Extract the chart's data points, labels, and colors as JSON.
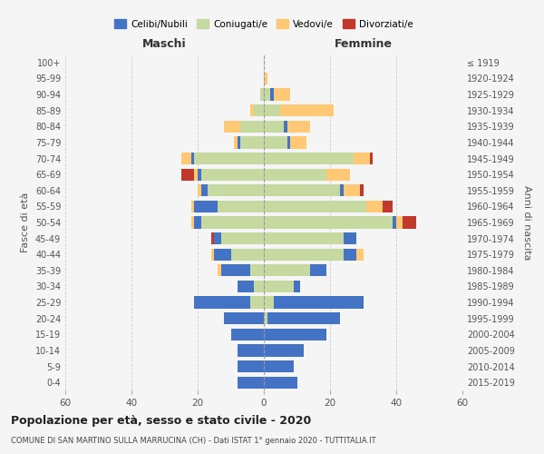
{
  "age_groups": [
    "0-4",
    "5-9",
    "10-14",
    "15-19",
    "20-24",
    "25-29",
    "30-34",
    "35-39",
    "40-44",
    "45-49",
    "50-54",
    "55-59",
    "60-64",
    "65-69",
    "70-74",
    "75-79",
    "80-84",
    "85-89",
    "90-94",
    "95-99",
    "100+"
  ],
  "birth_years": [
    "2015-2019",
    "2010-2014",
    "2005-2009",
    "2000-2004",
    "1995-1999",
    "1990-1994",
    "1985-1989",
    "1980-1984",
    "1975-1979",
    "1970-1974",
    "1965-1969",
    "1960-1964",
    "1955-1959",
    "1950-1954",
    "1945-1949",
    "1940-1944",
    "1935-1939",
    "1930-1934",
    "1925-1929",
    "1920-1924",
    "≤ 1919"
  ],
  "colors": {
    "celibi": "#4472C4",
    "coniugati": "#c5d9a0",
    "vedovi": "#ffc875",
    "divorziati": "#c0392b"
  },
  "maschi": {
    "celibi": [
      8,
      8,
      8,
      10,
      12,
      17,
      5,
      9,
      5,
      2,
      2,
      7,
      2,
      1,
      1,
      1,
      0,
      0,
      0,
      0,
      0
    ],
    "coniugati": [
      0,
      0,
      0,
      0,
      0,
      4,
      3,
      4,
      10,
      13,
      19,
      14,
      17,
      19,
      21,
      7,
      7,
      3,
      1,
      0,
      0
    ],
    "vedovi": [
      0,
      0,
      0,
      0,
      0,
      0,
      0,
      1,
      1,
      0,
      1,
      1,
      1,
      1,
      3,
      1,
      5,
      1,
      0,
      0,
      0
    ],
    "divorziati": [
      0,
      0,
      0,
      0,
      0,
      0,
      0,
      0,
      0,
      1,
      0,
      0,
      0,
      4,
      0,
      0,
      0,
      0,
      0,
      0,
      0
    ]
  },
  "femmine": {
    "celibi": [
      10,
      9,
      12,
      19,
      22,
      27,
      2,
      5,
      4,
      4,
      1,
      0,
      1,
      0,
      0,
      1,
      1,
      0,
      1,
      0,
      0
    ],
    "coniugati": [
      0,
      0,
      0,
      0,
      1,
      3,
      9,
      14,
      24,
      24,
      39,
      31,
      23,
      19,
      27,
      7,
      6,
      5,
      2,
      0,
      0
    ],
    "vedovi": [
      0,
      0,
      0,
      0,
      0,
      0,
      0,
      0,
      2,
      0,
      2,
      5,
      5,
      7,
      5,
      5,
      7,
      16,
      5,
      1,
      0
    ],
    "divorziati": [
      0,
      0,
      0,
      0,
      0,
      0,
      0,
      0,
      0,
      0,
      4,
      3,
      1,
      0,
      1,
      0,
      0,
      0,
      0,
      0,
      0
    ]
  },
  "xlim": 60,
  "title": "Popolazione per età, sesso e stato civile - 2020",
  "subtitle": "COMUNE DI SAN MARTINO SULLA MARRUCINA (CH) - Dati ISTAT 1° gennaio 2020 - TUTTITALIA.IT",
  "xlabel_left": "Maschi",
  "xlabel_right": "Femmine",
  "ylabel_left": "Fasce di età",
  "ylabel_right": "Anni di nascita",
  "legend_labels": [
    "Celibi/Nubili",
    "Coniugati/e",
    "Vedovi/e",
    "Divorziati/e"
  ],
  "bg_color": "#f5f5f5",
  "grid_color": "#cccccc"
}
